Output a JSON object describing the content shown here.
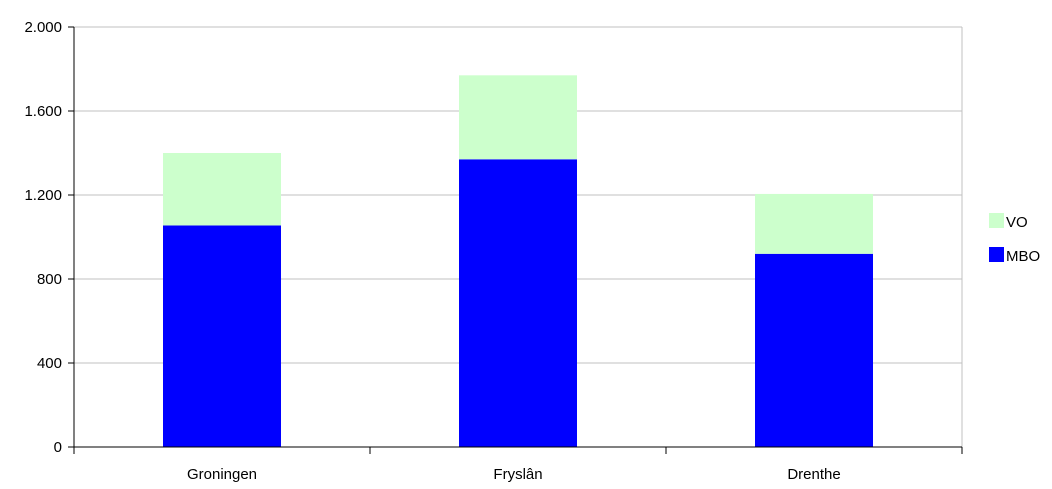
{
  "chart_data": {
    "type": "bar",
    "stacked": true,
    "categories": [
      "Groningen",
      "Fryslân",
      "Drenthe"
    ],
    "series": [
      {
        "name": "MBO",
        "values": [
          1055,
          1370,
          920
        ],
        "color": "#0000ff"
      },
      {
        "name": "VO",
        "values": [
          345,
          400,
          285
        ],
        "color": "#ccffcc"
      }
    ],
    "ylim": [
      0,
      2000
    ],
    "yticks": [
      0,
      400,
      800,
      1200,
      1600,
      2000
    ],
    "ytick_labels": [
      "0",
      "400",
      "800",
      "1.200",
      "1.600",
      "2.000"
    ],
    "legend_position": "right",
    "legend_order": [
      "VO",
      "MBO"
    ],
    "grid": true,
    "grid_color": "#c0c0c0",
    "title": "",
    "xlabel": "",
    "ylabel": ""
  }
}
